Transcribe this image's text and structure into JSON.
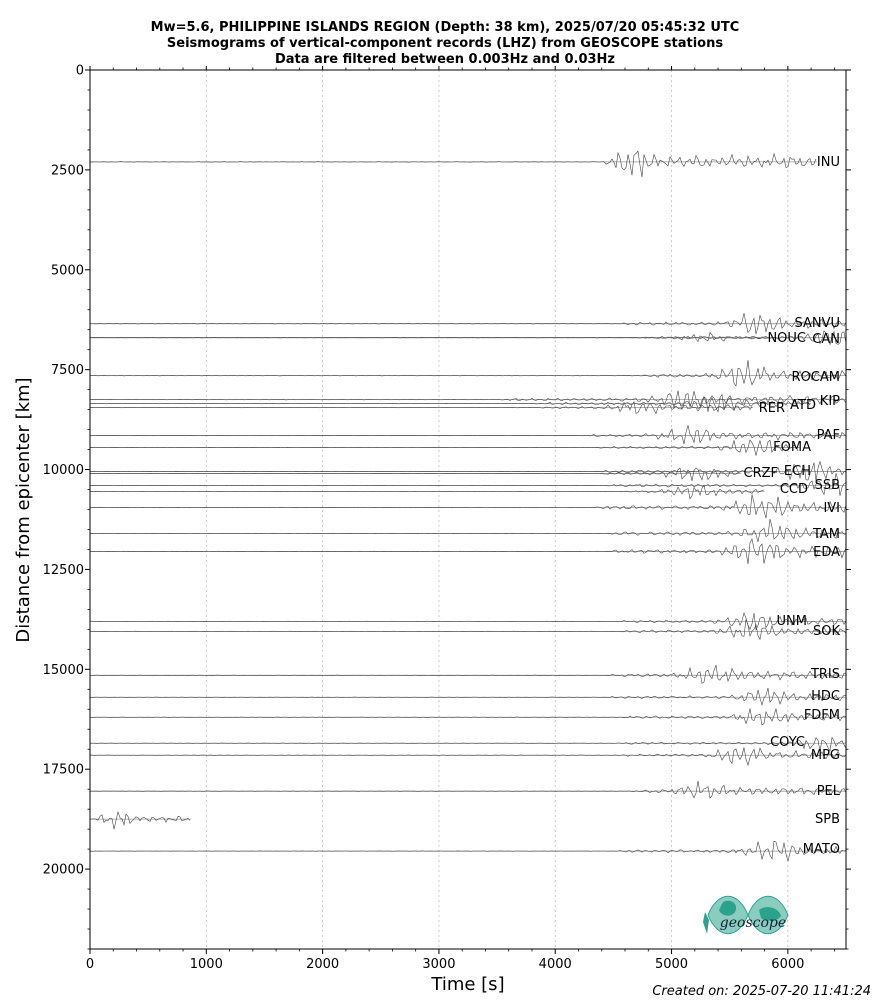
{
  "chart_data": {
    "type": "line",
    "title_lines": [
      "Mw=5.6, PHILIPPINE ISLANDS REGION (Depth: 38 km), 2025/07/20 05:45:32 UTC",
      "Seismograms of vertical-component records (LHZ) from GEOSCOPE stations",
      "Data are filtered between 0.003Hz and 0.03Hz"
    ],
    "xlabel": "Time [s]",
    "ylabel": "Distance from epicenter [km]",
    "xlim": [
      0,
      6500
    ],
    "ylim": [
      22000,
      0
    ],
    "x_ticks": [
      0,
      1000,
      2000,
      3000,
      4000,
      5000,
      6000
    ],
    "y_ticks": [
      0,
      2500,
      5000,
      7500,
      10000,
      12500,
      15000,
      17500,
      20000
    ],
    "grid": "vertical-dotted",
    "traces": [
      {
        "station": "INU",
        "distance_km": 2300,
        "arrival_s": 4400,
        "peak_s": 4650,
        "amp": 1.0,
        "end_s": 6250
      },
      {
        "station": "SANVU",
        "distance_km": 6350,
        "arrival_s": 4500,
        "peak_s": 5750,
        "amp": 0.7,
        "end_s": 6500
      },
      {
        "station": "NOUC",
        "distance_km": 6700,
        "arrival_s": 4600,
        "peak_s": 5300,
        "amp": 0.3,
        "end_s": 5850
      },
      {
        "station": "CAN",
        "distance_km": 6700,
        "arrival_s": 4700,
        "peak_s": 6400,
        "amp": 0.6,
        "end_s": 6500
      },
      {
        "station": "ROCAM",
        "distance_km": 7650,
        "arrival_s": 4700,
        "peak_s": 5650,
        "amp": 0.8,
        "end_s": 6500
      },
      {
        "station": "KIP",
        "distance_km": 8250,
        "arrival_s": 3500,
        "peak_s": 5100,
        "amp": 0.7,
        "end_s": 6500
      },
      {
        "station": "RER",
        "distance_km": 8450,
        "arrival_s": 3800,
        "peak_s": 4750,
        "amp": 0.5,
        "end_s": 5700
      },
      {
        "station": "ATD",
        "distance_km": 8350,
        "arrival_s": 3800,
        "peak_s": 5400,
        "amp": 0.6,
        "end_s": 6200
      },
      {
        "station": "PAF",
        "distance_km": 9150,
        "arrival_s": 4200,
        "peak_s": 5150,
        "amp": 0.6,
        "end_s": 6500
      },
      {
        "station": "FOMA",
        "distance_km": 9450,
        "arrival_s": 4300,
        "peak_s": 5700,
        "amp": 0.6,
        "end_s": 6100
      },
      {
        "station": "ECH",
        "distance_km": 10050,
        "arrival_s": 4300,
        "peak_s": 6200,
        "amp": 0.7,
        "end_s": 6500
      },
      {
        "station": "CRZF",
        "distance_km": 10100,
        "arrival_s": 4300,
        "peak_s": 5200,
        "amp": 0.5,
        "end_s": 5600
      },
      {
        "station": "SSB",
        "distance_km": 10400,
        "arrival_s": 4400,
        "peak_s": 6400,
        "amp": 0.7,
        "end_s": 6500
      },
      {
        "station": "CCD",
        "distance_km": 10550,
        "arrival_s": 4500,
        "peak_s": 5200,
        "amp": 0.4,
        "end_s": 5800
      },
      {
        "station": "IVI",
        "distance_km": 10950,
        "arrival_s": 4300,
        "peak_s": 5800,
        "amp": 0.9,
        "end_s": 6500
      },
      {
        "station": "TAM",
        "distance_km": 11600,
        "arrival_s": 4400,
        "peak_s": 5900,
        "amp": 0.8,
        "end_s": 6500
      },
      {
        "station": "EDA",
        "distance_km": 12050,
        "arrival_s": 4400,
        "peak_s": 5750,
        "amp": 0.9,
        "end_s": 6500
      },
      {
        "station": "UNM",
        "distance_km": 13800,
        "arrival_s": 4500,
        "peak_s": 5700,
        "amp": 0.6,
        "end_s": 6500
      },
      {
        "station": "SOK",
        "distance_km": 14050,
        "arrival_s": 4500,
        "peak_s": 5700,
        "amp": 0.6,
        "end_s": 6500
      },
      {
        "station": "TRIS",
        "distance_km": 15150,
        "arrival_s": 4400,
        "peak_s": 5350,
        "amp": 0.7,
        "end_s": 6500
      },
      {
        "station": "HDC",
        "distance_km": 15700,
        "arrival_s": 4400,
        "peak_s": 5850,
        "amp": 0.6,
        "end_s": 6500
      },
      {
        "station": "FDFM",
        "distance_km": 16200,
        "arrival_s": 4500,
        "peak_s": 5800,
        "amp": 0.6,
        "end_s": 6500
      },
      {
        "station": "COYC",
        "distance_km": 16850,
        "arrival_s": 4500,
        "peak_s": 6300,
        "amp": 0.5,
        "end_s": 6500
      },
      {
        "station": "MPG",
        "distance_km": 17150,
        "arrival_s": 4500,
        "peak_s": 5600,
        "amp": 0.6,
        "end_s": 6500
      },
      {
        "station": "PEL",
        "distance_km": 18050,
        "arrival_s": 4600,
        "peak_s": 5250,
        "amp": 0.6,
        "end_s": 6500
      },
      {
        "station": "SPB",
        "distance_km": 18750,
        "arrival_s": 0,
        "peak_s": 200,
        "amp": 0.5,
        "end_s": 870
      },
      {
        "station": "MATO",
        "distance_km": 19550,
        "arrival_s": 4500,
        "peak_s": 5900,
        "amp": 0.7,
        "end_s": 6500
      }
    ]
  },
  "footer": {
    "created_on": "Created on: 2025-07-20 11:41:24"
  },
  "logo": {
    "text": "geoscope",
    "color": "#2aa28c"
  },
  "colors": {
    "trace": "#444444",
    "baseline": "#9a9a9a",
    "grid": "#bdbdbd"
  }
}
